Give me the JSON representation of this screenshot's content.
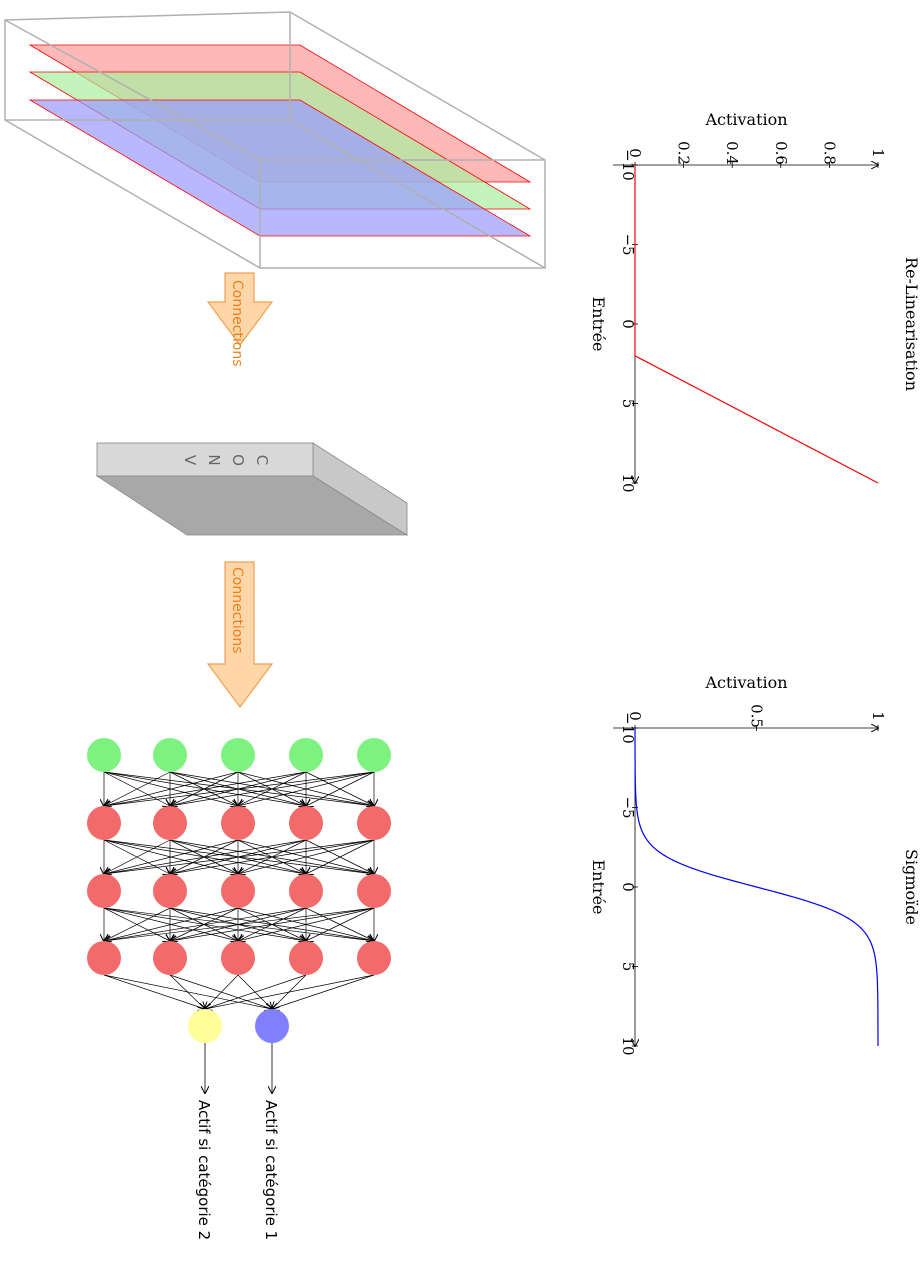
{
  "layers": {
    "colors": [
      "#ff9a9a",
      "#a8f0a0",
      "#9a9aff"
    ],
    "frame_color": "#b0b0b0"
  },
  "arrows": {
    "label": "Connections",
    "fill": "#ffd6a8",
    "stroke": "#f0a050",
    "text_color": "#e8821e"
  },
  "conv": {
    "label": "CONV",
    "letters": [
      "C",
      "O",
      "N",
      "V"
    ],
    "face_color": "#d8d8d8",
    "side_color": "#a8a8a8"
  },
  "network": {
    "input_color": "#7ef27e",
    "hidden_color": "#f26a6a",
    "output_colors": [
      "#ffff99",
      "#8080ff"
    ],
    "input_count": 5,
    "hidden_layers": 3,
    "hidden_count": 5,
    "outputs": [
      "Actif si catégorie 2",
      "Actif si catégorie 1"
    ]
  },
  "chart_data": [
    {
      "type": "line",
      "title": "Re-Linearisation",
      "xlabel": "Entrée",
      "ylabel": "Activation",
      "xlim": [
        -10,
        10
      ],
      "ylim": [
        0,
        1
      ],
      "xticks": [
        "−10",
        "−5",
        "0",
        "5",
        "10"
      ],
      "yticks": [
        "0",
        "0.2",
        "0.4",
        "0.6",
        "0.8",
        "1"
      ],
      "color": "#ff0000",
      "x": [
        -10,
        2,
        10
      ],
      "y": [
        0,
        0,
        1
      ]
    },
    {
      "type": "line",
      "title": "Sigmoïde",
      "xlabel": "Entrée",
      "ylabel": "Activation",
      "xlim": [
        -10,
        10
      ],
      "ylim": [
        0,
        1
      ],
      "xticks": [
        "−10",
        "−5",
        "0",
        "5",
        "10"
      ],
      "yticks": [
        "0",
        "0.5",
        "1"
      ],
      "color": "#0000ff",
      "function": "sigmoid"
    }
  ]
}
